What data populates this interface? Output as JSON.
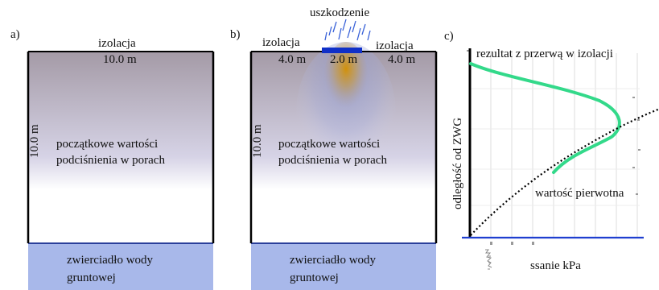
{
  "panel_a": {
    "letter": "a)",
    "insulation_label": "izolacja",
    "width_label": "10.0 m",
    "height_label": "10.0 m",
    "initial_text_line1": "początkowe wartości",
    "initial_text_line2": "podciśnienia w porach",
    "water_table_line1": "zwierciadło wody",
    "water_table_line2": "gruntowej"
  },
  "panel_b": {
    "letter": "b)",
    "damage_label": "uszkodzenie",
    "insulation_left_label": "izolacja",
    "insulation_right_label": "izolacja",
    "left_width_label": "4.0 m",
    "gap_width_label": "2.0 m",
    "right_width_label": "4.0 m",
    "height_label": "10.0 m",
    "initial_text_line1": "początkowe wartości",
    "initial_text_line2": "podciśnienia w porach",
    "water_table_line1": "zwierciadło wody",
    "water_table_line2": "gruntowej"
  },
  "panel_c": {
    "letter": "c)",
    "result_label": "rezultat z przerwą w izolacji",
    "y_axis_label": "odległość od ZWG",
    "original_label": "wartość pierwotna",
    "x_axis_label": "ssanie kPa"
  },
  "colors": {
    "soil_top": "#a49aa6",
    "soil_bottom": "#ffffff",
    "water": "#a8b8ea",
    "water_line": "#2a3f9a",
    "insulation": "#1030c8",
    "rain": "#3a62d8",
    "wet_plume": "#d49000",
    "result_curve": "#33d98a",
    "axis_line": "#1f3fd0"
  }
}
